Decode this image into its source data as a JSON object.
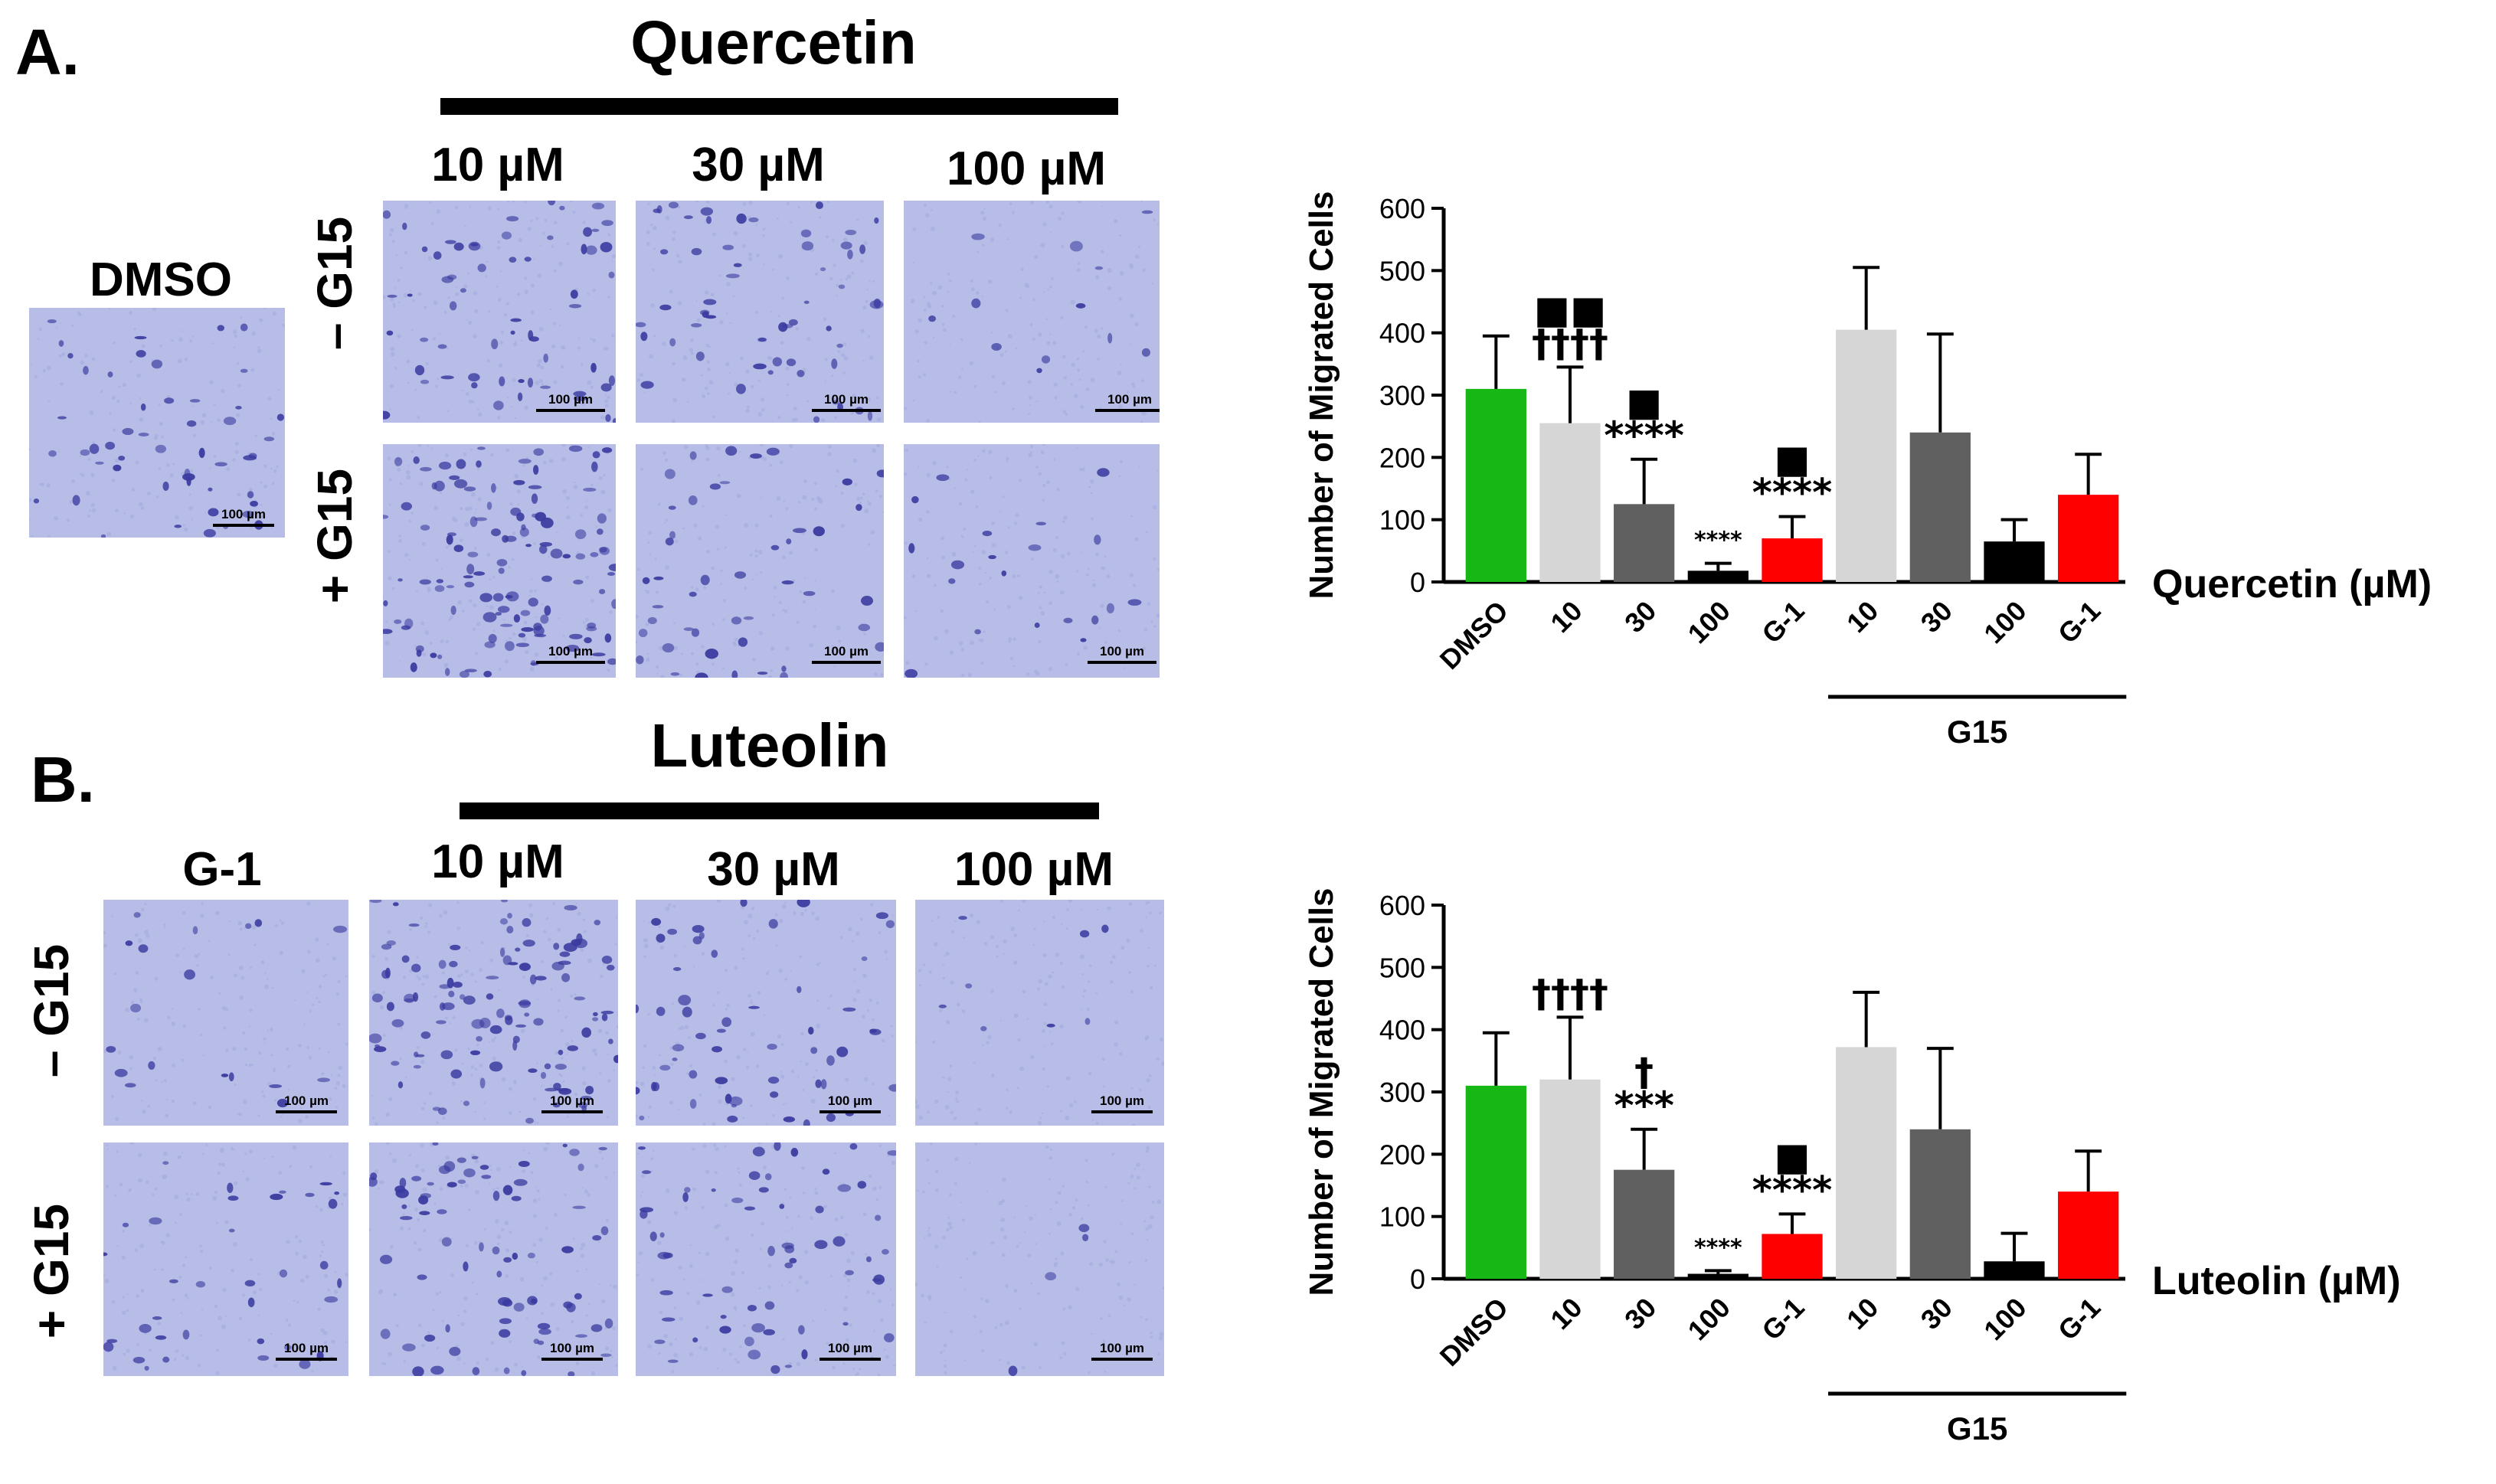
{
  "panel_a": {
    "letter": "A.",
    "compound": "Quercetin",
    "control_label": "DMSO",
    "concentrations": [
      "10 µM",
      "30 µM",
      "100 µM"
    ],
    "row_minus": "– G15",
    "row_plus": "+ G15",
    "scale_label": "100 µm"
  },
  "panel_b": {
    "letter": "B.",
    "compound": "Luteolin",
    "control_label": "G-1",
    "concentrations": [
      "10 µM",
      "30 µM",
      "100 µM"
    ],
    "row_minus": "– G15",
    "row_plus": "+ G15",
    "scale_label": "100 µm"
  },
  "colors": {
    "dmso": "#16b816",
    "light_gray": "#d6d6d6",
    "dark_gray": "#606060",
    "black": "#000000",
    "g1": "#ff0000",
    "micro_bg": "#b7bde6",
    "cell": "#3a3aa0"
  },
  "chart_data": [
    {
      "type": "bar",
      "ylabel": "Number of Migrated Cells",
      "xlabel": "Quercetin (µM)",
      "group_label": "G15",
      "ylim": [
        0,
        600
      ],
      "yticks": [
        0,
        100,
        200,
        300,
        400,
        500,
        600
      ],
      "categories": [
        "DMSO",
        "10",
        "30",
        "100",
        "G-1",
        "10",
        "30",
        "100",
        "G-1"
      ],
      "values": [
        310,
        255,
        125,
        18,
        70,
        405,
        240,
        65,
        140
      ],
      "errors": [
        85,
        90,
        72,
        12,
        35,
        100,
        158,
        35,
        65
      ],
      "bar_colors": [
        "dmso",
        "light_gray",
        "dark_gray",
        "black",
        "g1",
        "light_gray",
        "dark_gray",
        "black",
        "g1"
      ],
      "annotations": [
        {
          "bar": 1,
          "lines": [
            "■■",
            "††††"
          ]
        },
        {
          "bar": 2,
          "lines": [
            "■",
            "****"
          ]
        },
        {
          "bar": 3,
          "lines": [
            "****"
          ]
        },
        {
          "bar": 4,
          "lines": [
            "■",
            "****"
          ]
        }
      ]
    },
    {
      "type": "bar",
      "ylabel": "Number of Migrated Cells",
      "xlabel": "Luteolin (µM)",
      "group_label": "G15",
      "ylim": [
        0,
        600
      ],
      "yticks": [
        0,
        100,
        200,
        300,
        400,
        500,
        600
      ],
      "categories": [
        "DMSO",
        "10",
        "30",
        "100",
        "G-1",
        "10",
        "30",
        "100",
        "G-1"
      ],
      "values": [
        310,
        320,
        175,
        8,
        72,
        372,
        240,
        28,
        140
      ],
      "errors": [
        85,
        100,
        65,
        5,
        32,
        88,
        130,
        45,
        65
      ],
      "bar_colors": [
        "dmso",
        "light_gray",
        "dark_gray",
        "black",
        "g1",
        "light_gray",
        "dark_gray",
        "black",
        "g1"
      ],
      "annotations": [
        {
          "bar": 1,
          "lines": [
            "††††"
          ]
        },
        {
          "bar": 2,
          "lines": [
            "†",
            "***"
          ]
        },
        {
          "bar": 3,
          "lines": [
            "****"
          ]
        },
        {
          "bar": 4,
          "lines": [
            "■",
            "****"
          ]
        }
      ]
    }
  ]
}
